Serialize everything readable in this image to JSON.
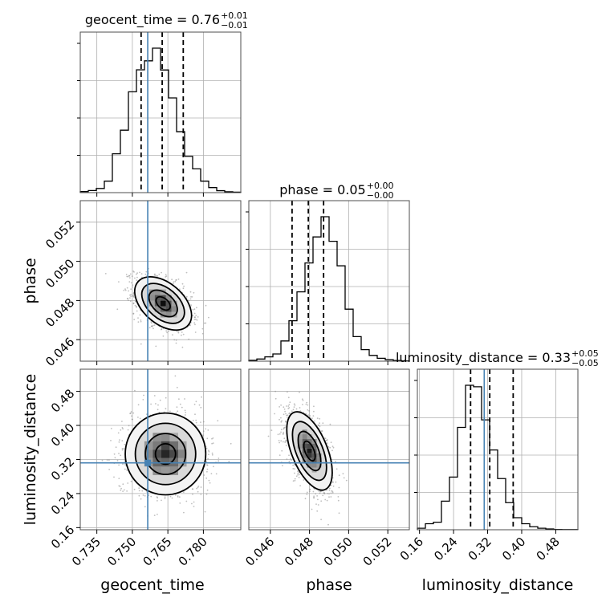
{
  "chart_data": {
    "type": "corner",
    "grid": true,
    "colors": {
      "truth": "#4682b4",
      "hist": "#000000",
      "grid": "#b0b0b0",
      "scatter": "#8a8a8a"
    },
    "parameters": [
      {
        "key": "geocent_time",
        "label": "geocent_time",
        "title_main": "geocent_time = 0.76",
        "title_plus": "+0.01",
        "title_minus": "−0.01",
        "range": [
          0.728,
          0.7958
        ],
        "ticks": [
          0.735,
          0.75,
          0.765,
          0.78
        ],
        "tick_labels": [
          "0.735",
          "0.750",
          "0.765",
          "0.780"
        ],
        "truth": 0.7565,
        "quantiles": [
          0.7537,
          0.7626,
          0.7715
        ],
        "histogram": [
          0.007,
          0.014,
          0.028,
          0.077,
          0.26,
          0.418,
          0.675,
          0.822,
          0.882,
          0.967,
          0.821,
          0.634,
          0.408,
          0.243,
          0.159,
          0.077,
          0.034,
          0.013,
          0.006,
          0.003
        ]
      },
      {
        "key": "phase",
        "label": "phase",
        "title_main": "phase = 0.05",
        "title_plus": "+0.00",
        "title_minus": "−0.00",
        "range": [
          0.0449,
          0.0531
        ],
        "ticks": [
          0.046,
          0.048,
          0.05,
          0.052
        ],
        "tick_labels": [
          "0.046",
          "0.048",
          "0.050",
          "0.052"
        ],
        "truth": null,
        "quantiles": [
          0.04711,
          0.04794,
          0.04872
        ],
        "histogram": [
          0.006,
          0.015,
          0.03,
          0.05,
          0.14,
          0.28,
          0.48,
          0.68,
          0.86,
          1.0,
          0.83,
          0.66,
          0.36,
          0.17,
          0.08,
          0.04,
          0.02,
          0.01,
          0.005,
          0.002
        ]
      },
      {
        "key": "luminosity_distance",
        "label": "luminosity_distance",
        "title_main": "luminosity_distance = 0.33",
        "title_plus": "+0.05",
        "title_minus": "−0.05",
        "range": [
          0.155,
          0.532
        ],
        "ticks": [
          0.16,
          0.24,
          0.32,
          0.4,
          0.48
        ],
        "tick_labels": [
          "0.16",
          "0.24",
          "0.32",
          "0.40",
          "0.48"
        ],
        "truth": 0.312,
        "quantiles": [
          0.28,
          0.325,
          0.38
        ],
        "histogram": [
          0.01,
          0.04,
          0.05,
          0.19,
          0.35,
          0.68,
          0.96,
          0.95,
          0.73,
          0.53,
          0.34,
          0.18,
          0.08,
          0.04,
          0.02,
          0.01,
          0.005,
          0.002,
          0.001,
          0.001
        ]
      }
    ],
    "pairs": [
      {
        "x": "geocent_time",
        "y": "phase",
        "center": [
          0.763,
          0.04785
        ],
        "sigma": [
          0.006,
          0.00068
        ],
        "rho": -0.45
      },
      {
        "x": "geocent_time",
        "y": "luminosity_distance",
        "center": [
          0.764,
          0.333
        ],
        "sigma": [
          0.0085,
          0.048
        ],
        "rho": 0.0
      },
      {
        "x": "phase",
        "y": "luminosity_distance",
        "center": [
          0.048,
          0.34
        ],
        "sigma": [
          0.00058,
          0.046
        ],
        "rho": -0.55
      }
    ],
    "truth_point": {
      "x": "geocent_time",
      "y": "luminosity_distance",
      "value": [
        0.7565,
        0.312
      ]
    }
  }
}
